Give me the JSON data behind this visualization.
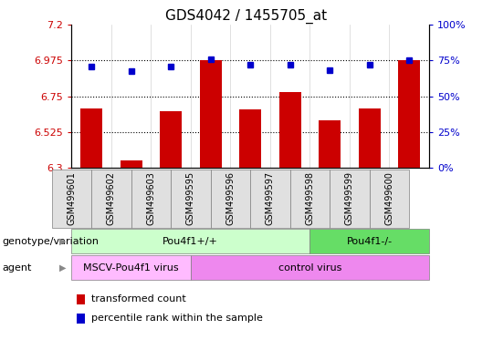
{
  "title": "GDS4042 / 1455705_at",
  "samples": [
    "GSM499601",
    "GSM499602",
    "GSM499603",
    "GSM499595",
    "GSM499596",
    "GSM499597",
    "GSM499598",
    "GSM499599",
    "GSM499600"
  ],
  "bar_values": [
    6.675,
    6.345,
    6.655,
    6.975,
    6.67,
    6.775,
    6.6,
    6.675,
    6.975
  ],
  "bar_bottom": 6.3,
  "dot_values": [
    6.935,
    6.91,
    6.935,
    6.98,
    6.945,
    6.945,
    6.915,
    6.945,
    6.975
  ],
  "ylim_left": [
    6.3,
    7.2
  ],
  "ylim_right": [
    0,
    100
  ],
  "yticks_left": [
    6.3,
    6.525,
    6.75,
    6.975,
    7.2
  ],
  "yticks_right": [
    0,
    25,
    50,
    75,
    100
  ],
  "hlines": [
    6.525,
    6.75,
    6.975
  ],
  "bar_color": "#cc0000",
  "dot_color": "#0000cc",
  "bar_width": 0.55,
  "genotype_groups": [
    {
      "label": "Pou4f1+/+",
      "start": 0,
      "end": 6,
      "color": "#ccffcc"
    },
    {
      "label": "Pou4f1-/-",
      "start": 6,
      "end": 9,
      "color": "#66dd66"
    }
  ],
  "agent_groups": [
    {
      "label": "MSCV-Pou4f1 virus",
      "start": 0,
      "end": 3,
      "color": "#ffbbff"
    },
    {
      "label": "control virus",
      "start": 3,
      "end": 9,
      "color": "#ee88ee"
    }
  ],
  "legend_items": [
    {
      "color": "#cc0000",
      "label": "transformed count"
    },
    {
      "color": "#0000cc",
      "label": "percentile rank within the sample"
    }
  ],
  "left_tick_color": "#cc0000",
  "right_tick_color": "#0000cc",
  "title_fontsize": 11,
  "axis_fontsize": 8,
  "tick_label_fontsize": 7,
  "annotation_label_fontsize": 8,
  "row_label_fontsize": 8
}
